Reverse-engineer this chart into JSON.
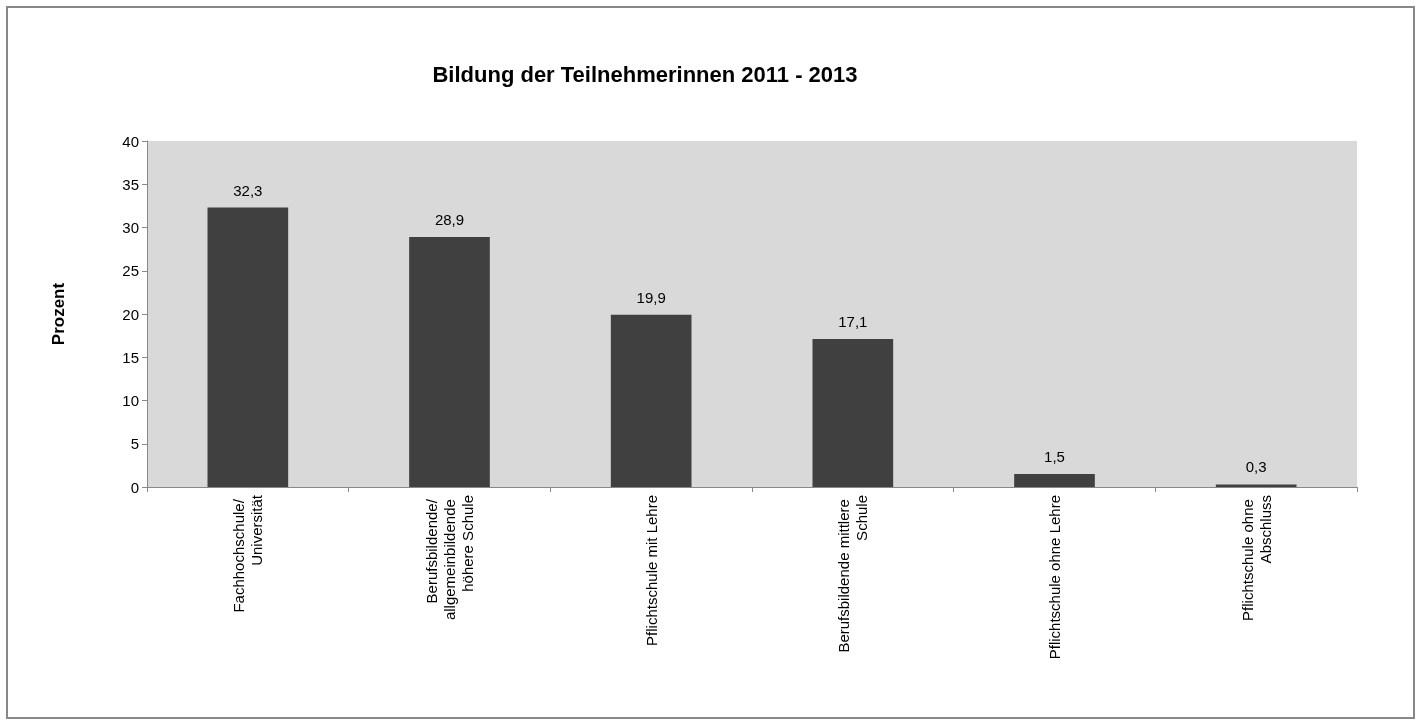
{
  "chart_data": {
    "type": "bar",
    "title": "Bildung der Teilnehmerinnen 2011 - 2013",
    "ylabel": "Prozent",
    "categories": [
      "Fachhochschule/ Universität",
      "Berufsbildende/ allgemeinbildende höhere Schule",
      "Pflichtschule mit Lehre",
      "Berufsbildende mittlere Schule",
      "Pflichtschule ohne Lehre",
      "Pflichtschule ohne Abschluss"
    ],
    "values": [
      32.3,
      28.9,
      19.9,
      17.1,
      1.5,
      0.3
    ],
    "value_labels": [
      "32,3",
      "28,9",
      "19,9",
      "17,1",
      "1,5",
      "0,3"
    ],
    "color": "#404040",
    "ylim": [
      0,
      40
    ],
    "yticks": [
      0,
      5,
      10,
      15,
      20,
      25,
      30,
      35,
      40
    ],
    "grid": false
  }
}
